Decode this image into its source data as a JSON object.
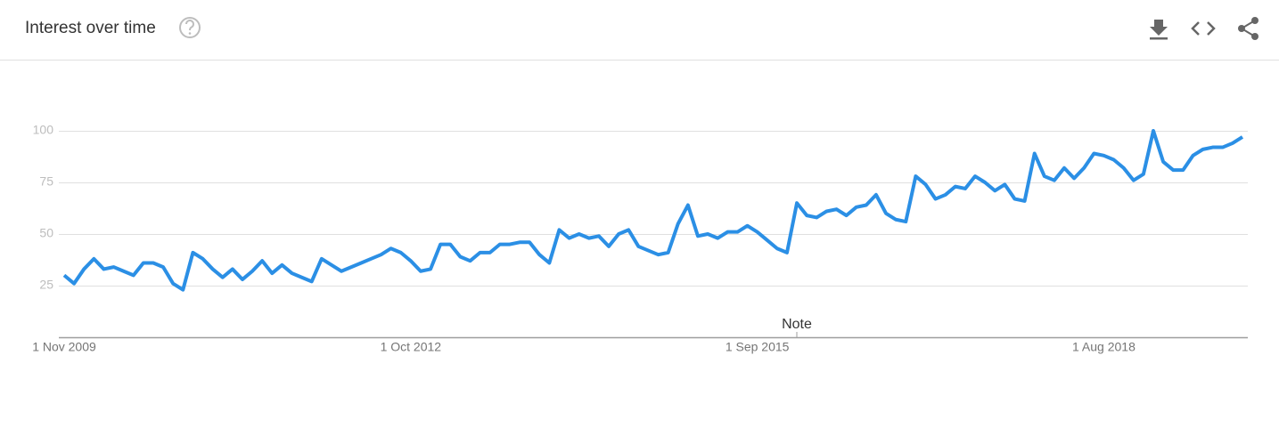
{
  "chart_data": {
    "type": "line",
    "title": "Interest over time",
    "annotation": "Note",
    "categories": [
      "1 Nov 2009",
      null,
      null,
      null,
      null,
      null,
      null,
      null,
      null,
      null,
      null,
      null,
      null,
      null,
      null,
      null,
      null,
      null,
      null,
      null,
      null,
      null,
      null,
      null,
      null,
      null,
      null,
      null,
      null,
      null,
      null,
      null,
      null,
      null,
      null,
      "1 Oct 2012",
      null,
      null,
      null,
      null,
      null,
      null,
      null,
      null,
      null,
      null,
      null,
      null,
      null,
      null,
      null,
      null,
      null,
      null,
      null,
      null,
      null,
      null,
      null,
      null,
      null,
      null,
      null,
      null,
      null,
      null,
      null,
      null,
      null,
      null,
      "1 Sep 2015",
      null,
      null,
      null,
      null,
      null,
      null,
      null,
      null,
      null,
      null,
      null,
      null,
      null,
      null,
      null,
      null,
      null,
      null,
      null,
      null,
      null,
      null,
      null,
      null,
      null,
      null,
      null,
      null,
      null,
      null,
      null,
      null,
      null,
      null,
      "1 Aug 2018",
      null,
      null,
      null,
      null,
      null,
      null,
      null,
      null,
      null,
      null,
      null,
      null,
      null,
      null
    ],
    "series": [
      {
        "color": "#2b8fe5",
        "values": [
          30,
          26,
          33,
          38,
          33,
          34,
          32,
          30,
          36,
          36,
          34,
          26,
          23,
          41,
          38,
          33,
          29,
          33,
          28,
          32,
          37,
          31,
          35,
          31,
          29,
          27,
          38,
          35,
          32,
          34,
          36,
          38,
          40,
          43,
          41,
          37,
          32,
          33,
          45,
          45,
          39,
          37,
          41,
          41,
          45,
          45,
          46,
          46,
          40,
          36,
          52,
          48,
          50,
          48,
          49,
          44,
          50,
          52,
          44,
          42,
          40,
          41,
          55,
          64,
          49,
          50,
          48,
          51,
          51,
          54,
          51,
          47,
          43,
          41,
          65,
          59,
          58,
          61,
          62,
          59,
          63,
          64,
          69,
          60,
          57,
          56,
          78,
          74,
          67,
          69,
          73,
          72,
          78,
          75,
          71,
          74,
          67,
          66,
          89,
          78,
          76,
          82,
          77,
          82,
          89,
          88,
          86,
          82,
          76,
          79,
          100,
          85,
          81,
          81,
          88,
          91,
          92,
          92,
          94,
          97
        ]
      }
    ],
    "ylim": [
      0,
      100
    ],
    "yticks": [
      25,
      50,
      75,
      100
    ],
    "grid": true
  }
}
